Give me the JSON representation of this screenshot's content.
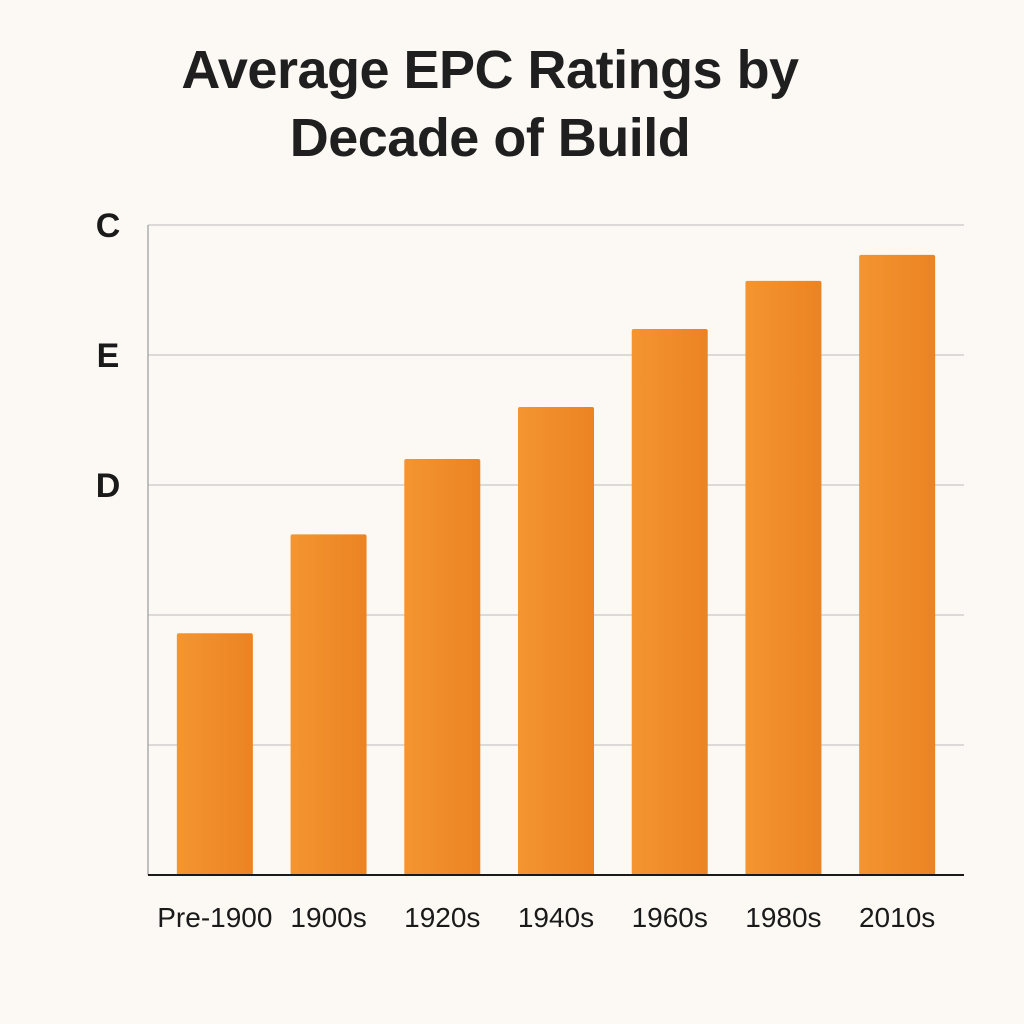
{
  "chart_data": {
    "type": "bar",
    "title_lines": [
      "Average EPC Ratings by",
      "Decade of Build"
    ],
    "categories": [
      "Pre-1900",
      "1900s",
      "1920s",
      "1940s",
      "1960s",
      "1980s",
      "2010s"
    ],
    "values": [
      1.86,
      2.62,
      3.2,
      3.6,
      4.2,
      4.57,
      4.77
    ],
    "ylim": [
      0,
      5
    ],
    "y_ticks": [
      {
        "value": 5,
        "label": "C"
      },
      {
        "value": 4,
        "label": "E"
      },
      {
        "value": 3,
        "label": "D"
      },
      {
        "value": 2,
        "label": ""
      },
      {
        "value": 1,
        "label": ""
      }
    ],
    "grid": true,
    "bar_color": "#f08a24",
    "grid_color": "#c8c8c8",
    "axis_color": "#1a1a1a"
  }
}
